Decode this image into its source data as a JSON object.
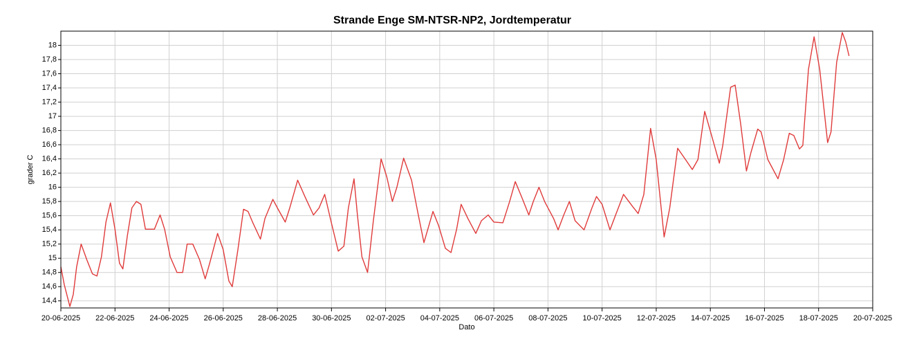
{
  "chart_data": {
    "type": "line",
    "title": "Strande Enge SM-NTSR-NP2, Jordtemperatur",
    "xlabel": "Dato",
    "ylabel": "grader C",
    "color": "#e03a3a",
    "grid": true,
    "xlim": [
      "2025-06-20",
      "2025-07-20"
    ],
    "xticks": [
      {
        "value": "2025-06-20",
        "label": "20-06-2025"
      },
      {
        "value": "2025-06-22",
        "label": "22-06-2025"
      },
      {
        "value": "2025-06-24",
        "label": "24-06-2025"
      },
      {
        "value": "2025-06-26",
        "label": "26-06-2025"
      },
      {
        "value": "2025-06-28",
        "label": "28-06-2025"
      },
      {
        "value": "2025-06-30",
        "label": "30-06-2025"
      },
      {
        "value": "2025-07-02",
        "label": "02-07-2025"
      },
      {
        "value": "2025-07-04",
        "label": "04-07-2025"
      },
      {
        "value": "2025-07-06",
        "label": "06-07-2025"
      },
      {
        "value": "2025-07-08",
        "label": "08-07-2025"
      },
      {
        "value": "2025-07-10",
        "label": "10-07-2025"
      },
      {
        "value": "2025-07-12",
        "label": "12-07-2025"
      },
      {
        "value": "2025-07-14",
        "label": "14-07-2025"
      },
      {
        "value": "2025-07-16",
        "label": "16-07-2025"
      },
      {
        "value": "2025-07-18",
        "label": "18-07-2025"
      },
      {
        "value": "2025-07-20",
        "label": "20-07-2025"
      }
    ],
    "ylim": [
      14.3,
      18.2
    ],
    "yticks": [
      {
        "value": 14.4,
        "label": "14,4"
      },
      {
        "value": 14.6,
        "label": "14,6"
      },
      {
        "value": 14.8,
        "label": "14,8"
      },
      15,
      {
        "value": 15.2,
        "label": "15,2"
      },
      {
        "value": 15.4,
        "label": "15,4"
      },
      {
        "value": 15.6,
        "label": "15,6"
      },
      {
        "value": 15.8,
        "label": "15,8"
      },
      16,
      {
        "value": 16.2,
        "label": "16,2"
      },
      {
        "value": 16.4,
        "label": "16,4"
      },
      {
        "value": 16.6,
        "label": "16,6"
      },
      {
        "value": 16.8,
        "label": "16,8"
      },
      17,
      {
        "value": 17.2,
        "label": "17,2"
      },
      {
        "value": 17.4,
        "label": "17,4"
      },
      {
        "value": 17.6,
        "label": "17,6"
      },
      {
        "value": 17.8,
        "label": "17,8"
      },
      18
    ],
    "x": [
      "2025-06-20T00:00",
      "2025-06-20T03:00",
      "2025-06-20T08:00",
      "2025-06-20T11:00",
      "2025-06-20T14:00",
      "2025-06-20T18:00",
      "2025-06-20T23:00",
      "2025-06-21T04:00",
      "2025-06-21T08:00",
      "2025-06-21T12:00",
      "2025-06-21T16:00",
      "2025-06-21T20:00",
      "2025-06-22T00:00",
      "2025-06-22T04:00",
      "2025-06-22T07:00",
      "2025-06-22T11:00",
      "2025-06-22T15:00",
      "2025-06-22T19:00",
      "2025-06-22T23:00",
      "2025-06-23T03:00",
      "2025-06-23T11:00",
      "2025-06-23T16:00",
      "2025-06-23T20:00",
      "2025-06-24T01:00",
      "2025-06-24T07:00",
      "2025-06-24T12:00",
      "2025-06-24T16:00",
      "2025-06-24T21:00",
      "2025-06-25T03:00",
      "2025-06-25T08:00",
      "2025-06-25T12:00",
      "2025-06-25T19:00",
      "2025-06-26T00:00",
      "2025-06-26T05:00",
      "2025-06-26T08:00",
      "2025-06-26T13:00",
      "2025-06-26T18:00",
      "2025-06-26T22:00",
      "2025-06-27T02:00",
      "2025-06-27T09:00",
      "2025-06-27T13:00",
      "2025-06-27T20:00",
      "2025-06-28T00:00",
      "2025-06-28T07:00",
      "2025-06-28T11:00",
      "2025-06-28T18:00",
      "2025-06-29T01:00",
      "2025-06-29T08:00",
      "2025-06-29T13:00",
      "2025-06-29T18:00",
      "2025-06-29T23:00",
      "2025-06-30T06:00",
      "2025-06-30T11:00",
      "2025-06-30T15:00",
      "2025-06-30T20:00",
      "2025-06-30T23:00",
      "2025-07-01T03:00",
      "2025-07-01T08:00",
      "2025-07-01T13:00",
      "2025-07-01T20:00",
      "2025-07-02T01:00",
      "2025-07-02T06:00",
      "2025-07-02T10:00",
      "2025-07-02T16:00",
      "2025-07-02T23:00",
      "2025-07-03T05:00",
      "2025-07-03T10:00",
      "2025-07-03T18:00",
      "2025-07-03T23:00",
      "2025-07-04T05:00",
      "2025-07-04T10:00",
      "2025-07-04T15:00",
      "2025-07-04T19:00",
      "2025-07-05T01:00",
      "2025-07-05T08:00",
      "2025-07-05T13:00",
      "2025-07-05T19:00",
      "2025-07-06T00:00",
      "2025-07-06T08:00",
      "2025-07-06T14:00",
      "2025-07-06T19:00",
      "2025-07-07T01:00",
      "2025-07-07T07:00",
      "2025-07-07T11:00",
      "2025-07-07T16:00",
      "2025-07-07T21:00",
      "2025-07-08T05:00",
      "2025-07-08T09:00",
      "2025-07-08T14:00",
      "2025-07-08T19:00",
      "2025-07-09T00:00",
      "2025-07-09T08:00",
      "2025-07-09T15:00",
      "2025-07-09T19:00",
      "2025-07-10T00:00",
      "2025-07-10T07:00",
      "2025-07-10T12:00",
      "2025-07-10T19:00",
      "2025-07-11T03:00",
      "2025-07-11T08:00",
      "2025-07-11T13:00",
      "2025-07-11T19:00",
      "2025-07-12T00:00",
      "2025-07-12T07:00",
      "2025-07-12T12:00",
      "2025-07-12T19:00",
      "2025-07-13T02:00",
      "2025-07-13T08:00",
      "2025-07-13T13:00",
      "2025-07-13T19:00",
      "2025-07-14T02:00",
      "2025-07-14T08:00",
      "2025-07-14T11:00",
      "2025-07-14T18:00",
      "2025-07-14T22:00",
      "2025-07-15T03:00",
      "2025-07-15T08:00",
      "2025-07-15T12:00",
      "2025-07-15T18:00",
      "2025-07-15T21:00",
      "2025-07-16T03:00",
      "2025-07-16T12:00",
      "2025-07-16T17:00",
      "2025-07-16T22:00",
      "2025-07-17T02:00",
      "2025-07-17T07:00",
      "2025-07-17T10:00",
      "2025-07-17T15:00",
      "2025-07-17T20:00",
      "2025-07-18T01:00",
      "2025-07-18T08:00",
      "2025-07-18T11:00",
      "2025-07-18T16:00",
      "2025-07-18T21:00",
      "2025-07-19T00:00",
      "2025-07-19T03:00"
    ],
    "values": [
      14.88,
      14.63,
      14.32,
      14.49,
      14.88,
      15.2,
      14.98,
      14.78,
      14.75,
      15.02,
      15.51,
      15.78,
      15.41,
      14.93,
      14.85,
      15.32,
      15.71,
      15.8,
      15.76,
      15.41,
      15.41,
      15.61,
      15.41,
      15.02,
      14.8,
      14.8,
      15.2,
      15.2,
      14.98,
      14.71,
      14.93,
      15.35,
      15.12,
      14.68,
      14.6,
      15.12,
      15.69,
      15.66,
      15.51,
      15.27,
      15.56,
      15.83,
      15.71,
      15.51,
      15.71,
      16.1,
      15.85,
      15.61,
      15.71,
      15.9,
      15.56,
      15.1,
      15.17,
      15.71,
      16.12,
      15.61,
      15.02,
      14.8,
      15.51,
      16.4,
      16.15,
      15.8,
      16.0,
      16.41,
      16.1,
      15.61,
      15.22,
      15.66,
      15.46,
      15.14,
      15.08,
      15.41,
      15.76,
      15.56,
      15.35,
      15.53,
      15.61,
      15.51,
      15.5,
      15.8,
      16.08,
      15.85,
      15.61,
      15.8,
      16.0,
      15.8,
      15.56,
      15.4,
      15.61,
      15.8,
      15.53,
      15.4,
      15.71,
      15.87,
      15.76,
      15.4,
      15.61,
      15.9,
      15.73,
      15.63,
      15.9,
      16.83,
      16.39,
      15.3,
      15.71,
      16.55,
      16.39,
      16.25,
      16.39,
      17.07,
      16.68,
      16.34,
      16.59,
      17.41,
      17.44,
      16.88,
      16.23,
      16.49,
      16.82,
      16.78,
      16.39,
      16.12,
      16.39,
      16.76,
      16.73,
      16.54,
      16.59,
      17.66,
      18.12,
      17.66,
      16.63,
      16.78,
      17.76,
      18.18,
      18.05,
      17.85
    ]
  }
}
